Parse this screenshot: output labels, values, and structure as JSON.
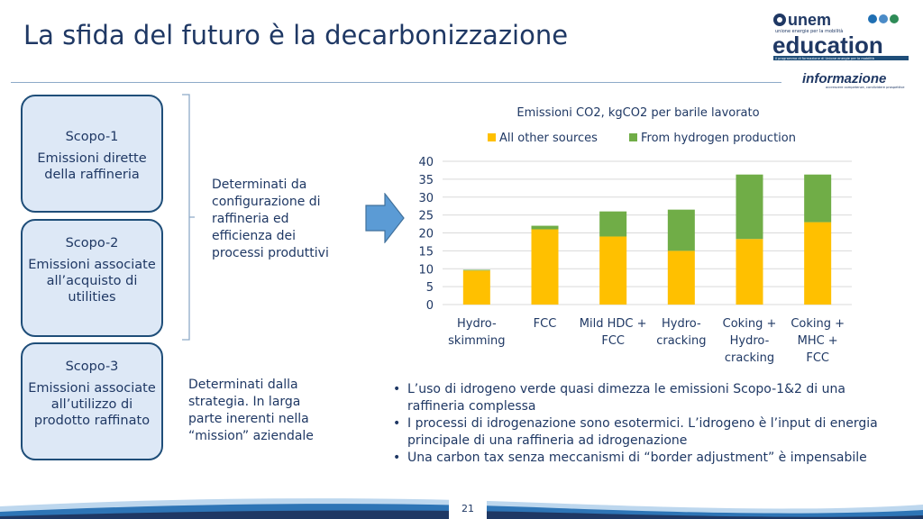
{
  "slide": {
    "title": "La sfida del futuro è la decarbonizzazione",
    "page_number": "21"
  },
  "logo": {
    "top_word": "unem",
    "tagline": "unione energie per la mobilità",
    "main_word": "education",
    "sub_tagline": "il programma di formazione di Unione energie per la mobilità",
    "secondary_word": "informazione",
    "secondary_tagline": "accrescere competenze, condividere prospettive"
  },
  "scopes": [
    {
      "title": "Scopo-1",
      "desc": "Emissioni dirette della raffineria"
    },
    {
      "title": "Scopo-2",
      "desc": "Emissioni associate all’acquisto di utilities"
    },
    {
      "title": "Scopo-3",
      "desc": "Emissioni associate all’utilizzo di prodotto raffinato"
    }
  ],
  "notes": {
    "scope12": "Determinati da configurazione di raffineria ed efficienza dei processi produttivi",
    "scope3": "Determinati dalla strategia. In larga parte inerenti nella “mission” aziendale"
  },
  "bullets": [
    "L’uso di idrogeno verde quasi dimezza le emissioni Scopo-1&2 di una raffineria complessa",
    "I processi di idrogenazione sono esotermici. L’idrogeno è l’input di energia principale di una raffineria ad idrogenazione",
    "Una carbon tax senza meccanismi di “border adjustment” è impensabile"
  ],
  "colors": {
    "navy": "#1f3864",
    "box_fill": "#dde8f6",
    "box_border": "#1f4e79",
    "arrow": "#5b9bd5",
    "series_other": "#ffc000",
    "series_hydrogen": "#70ad47",
    "gridline": "#d9d9d9"
  },
  "chart_data": {
    "type": "bar",
    "stacked": true,
    "title": "Emissioni CO2, kgCO2 per barile lavorato",
    "categories": [
      [
        "Hydro-",
        "skimming"
      ],
      [
        "FCC"
      ],
      [
        "Mild HDC +",
        "FCC"
      ],
      [
        "Hydro-",
        "cracking"
      ],
      [
        "Coking +",
        "Hydro-",
        "cracking"
      ],
      [
        "Coking +",
        "MHC +",
        "FCC"
      ]
    ],
    "series": [
      {
        "name": "All other sources",
        "color": "#ffc000",
        "values": [
          9.5,
          21,
          19,
          15,
          18.3,
          23
        ]
      },
      {
        "name": "From hydrogen production",
        "color": "#70ad47",
        "values": [
          0.2,
          1,
          7,
          11.5,
          18,
          13.3
        ]
      }
    ],
    "ylim": [
      0,
      40
    ],
    "yticks": [
      0,
      5,
      10,
      15,
      20,
      25,
      30,
      35,
      40
    ],
    "grid": true,
    "legend": "top"
  }
}
